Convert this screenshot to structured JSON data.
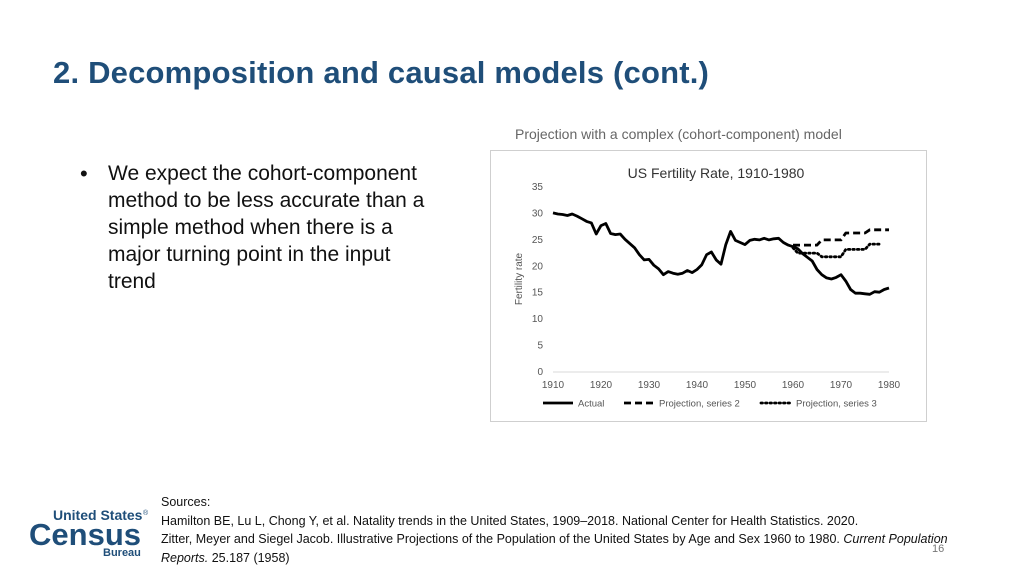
{
  "slide": {
    "title": "2. Decomposition and causal models (cont.)",
    "bullets": [
      "We expect the cohort-component method to be less accurate than a simple method when there is a major turning point in the input trend"
    ],
    "chart_caption": "Projection with a complex (cohort-component) model",
    "sources": {
      "heading": "Sources:",
      "line1": "Hamilton BE, Lu L, Chong Y, et al. Natality trends in the United States, 1909–2018. National Center for Health Statistics. 2020.",
      "line2_prefix": "Zitter, Meyer and Siegel Jacob. Illustrative Projections of the Population of the United States by Age and Sex 1960 to 1980.",
      "line2_italic": "Current Population Reports.",
      "line2_suffix": "25.187 (1958)"
    },
    "page_number": "16",
    "logo": {
      "line1": "United States",
      "registered": "®",
      "line2": "Census",
      "line3": "Bureau"
    }
  },
  "colors": {
    "title": "#1f4e79",
    "logo": "#1f4e79",
    "series": "#000000"
  },
  "chart_data": {
    "type": "line",
    "title": "US Fertility Rate, 1910-1980",
    "xlabel": "",
    "ylabel": "Fertility rate",
    "xlim": [
      1910,
      1980
    ],
    "ylim": [
      0,
      35
    ],
    "x_ticks": [
      "1910",
      "1920",
      "1930",
      "1940",
      "1950",
      "1960",
      "1970",
      "1980"
    ],
    "y_ticks": [
      "0",
      "5",
      "10",
      "15",
      "20",
      "25",
      "30",
      "35"
    ],
    "legend_position": "bottom",
    "series": [
      {
        "name": "Actual",
        "style": "solid",
        "x": [
          1910,
          1911,
          1912,
          1913,
          1914,
          1915,
          1916,
          1917,
          1918,
          1919,
          1920,
          1921,
          1922,
          1923,
          1924,
          1925,
          1926,
          1927,
          1928,
          1929,
          1930,
          1931,
          1932,
          1933,
          1934,
          1935,
          1936,
          1937,
          1938,
          1939,
          1940,
          1941,
          1942,
          1943,
          1944,
          1945,
          1946,
          1947,
          1948,
          1949,
          1950,
          1951,
          1952,
          1953,
          1954,
          1955,
          1956,
          1957,
          1958,
          1959,
          1960,
          1961,
          1962,
          1963,
          1964,
          1965,
          1966,
          1967,
          1968,
          1969,
          1970,
          1971,
          1972,
          1973,
          1974,
          1975,
          1976,
          1977,
          1978,
          1979,
          1980
        ],
        "values": [
          30.1,
          29.9,
          29.8,
          29.6,
          29.9,
          29.5,
          29.0,
          28.5,
          28.2,
          26.1,
          27.7,
          28.1,
          26.2,
          26.0,
          26.1,
          25.1,
          24.3,
          23.5,
          22.2,
          21.2,
          21.3,
          20.2,
          19.5,
          18.4,
          19.0,
          18.7,
          18.5,
          18.7,
          19.2,
          18.8,
          19.4,
          20.3,
          22.2,
          22.7,
          21.2,
          20.4,
          24.1,
          26.6,
          24.9,
          24.5,
          24.1,
          24.9,
          25.1,
          25.0,
          25.3,
          25.0,
          25.2,
          25.3,
          24.5,
          24.0,
          23.7,
          23.3,
          22.4,
          21.7,
          21.0,
          19.4,
          18.4,
          17.8,
          17.6,
          17.9,
          18.4,
          17.2,
          15.6,
          14.9,
          14.9,
          14.8,
          14.7,
          15.2,
          15.1,
          15.6,
          15.9
        ]
      },
      {
        "name": "Projection, series 2",
        "style": "dashed",
        "x": [
          1960,
          1965,
          1966,
          1970,
          1971,
          1975,
          1976,
          1980
        ],
        "values": [
          24.0,
          24.0,
          25.0,
          25.0,
          26.3,
          26.3,
          26.9,
          26.9
        ]
      },
      {
        "name": "Projection, series 3",
        "style": "dotted",
        "x": [
          1960,
          1961,
          1965,
          1966,
          1970,
          1971,
          1975,
          1976,
          1978
        ],
        "values": [
          23.5,
          22.5,
          22.5,
          21.8,
          21.8,
          23.2,
          23.2,
          24.2,
          24.2
        ]
      }
    ]
  }
}
